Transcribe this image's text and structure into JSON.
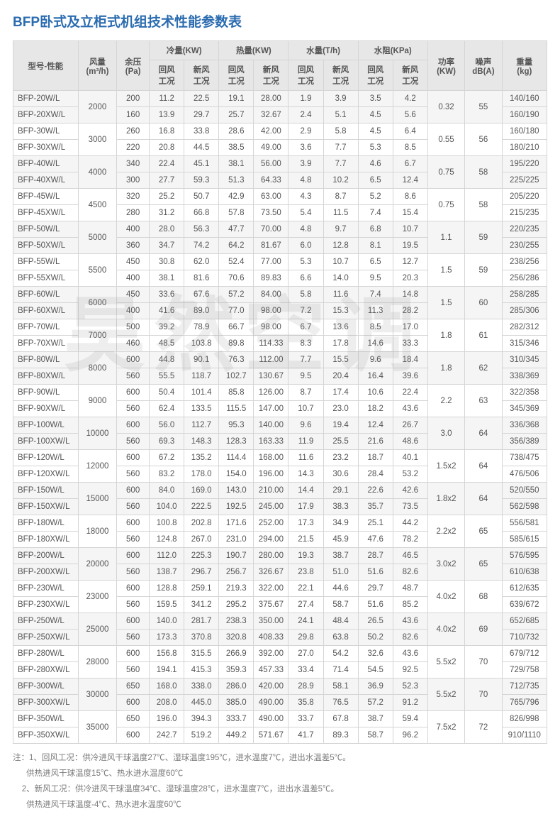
{
  "title": "BFP卧式及立柜式机组技术性能参数表",
  "watermark": "昊然空调",
  "head": {
    "model": "型号-性能",
    "airflow": "风量\n(m³/h)",
    "pressure": "余压\n(Pa)",
    "cool": "冷量(KW)",
    "heat": "热量(KW)",
    "water": "水量(T/h)",
    "resist": "水阻(KPa)",
    "sub_ret": "回风\n工况",
    "sub_new": "新风\n工况",
    "power": "功率\n(KW)",
    "noise": "噪声\ndB(A)",
    "weight": "重量\n(kg)"
  },
  "groups": [
    {
      "airflow": "2000",
      "power": "0.32",
      "noise": "55",
      "rows": [
        {
          "m": "BFP-20W/L",
          "p": "200",
          "c1": "11.2",
          "c2": "22.5",
          "h1": "19.1",
          "h2": "28.00",
          "w1": "1.9",
          "w2": "3.9",
          "r1": "3.5",
          "r2": "4.2",
          "wt": "140/160"
        },
        {
          "m": "BFP-20XW/L",
          "p": "160",
          "c1": "13.9",
          "c2": "29.7",
          "h1": "25.7",
          "h2": "32.67",
          "w1": "2.4",
          "w2": "5.1",
          "r1": "4.5",
          "r2": "5.6",
          "wt": "160/190"
        }
      ]
    },
    {
      "airflow": "3000",
      "power": "0.55",
      "noise": "56",
      "rows": [
        {
          "m": "BFP-30W/L",
          "p": "260",
          "c1": "16.8",
          "c2": "33.8",
          "h1": "28.6",
          "h2": "42.00",
          "w1": "2.9",
          "w2": "5.8",
          "r1": "4.5",
          "r2": "6.4",
          "wt": "160/180"
        },
        {
          "m": "BFP-30XW/L",
          "p": "220",
          "c1": "20.8",
          "c2": "44.5",
          "h1": "38.5",
          "h2": "49.00",
          "w1": "3.6",
          "w2": "7.7",
          "r1": "5.3",
          "r2": "8.5",
          "wt": "180/210"
        }
      ]
    },
    {
      "airflow": "4000",
      "power": "0.75",
      "noise": "58",
      "rows": [
        {
          "m": "BFP-40W/L",
          "p": "340",
          "c1": "22.4",
          "c2": "45.1",
          "h1": "38.1",
          "h2": "56.00",
          "w1": "3.9",
          "w2": "7.7",
          "r1": "4.6",
          "r2": "6.7",
          "wt": "195/220"
        },
        {
          "m": "BFP-40XW/L",
          "p": "300",
          "c1": "27.7",
          "c2": "59.3",
          "h1": "51.3",
          "h2": "64.33",
          "w1": "4.8",
          "w2": "10.2",
          "r1": "6.5",
          "r2": "12.4",
          "wt": "225/225"
        }
      ]
    },
    {
      "airflow": "4500",
      "power": "0.75",
      "noise": "58",
      "rows": [
        {
          "m": "BFP-45W/L",
          "p": "320",
          "c1": "25.2",
          "c2": "50.7",
          "h1": "42.9",
          "h2": "63.00",
          "w1": "4.3",
          "w2": "8.7",
          "r1": "5.2",
          "r2": "8.6",
          "wt": "205/220"
        },
        {
          "m": "BFP-45XW/L",
          "p": "280",
          "c1": "31.2",
          "c2": "66.8",
          "h1": "57.8",
          "h2": "73.50",
          "w1": "5.4",
          "w2": "11.5",
          "r1": "7.4",
          "r2": "15.4",
          "wt": "215/235"
        }
      ]
    },
    {
      "airflow": "5000",
      "power": "1.1",
      "noise": "59",
      "rows": [
        {
          "m": "BFP-50W/L",
          "p": "400",
          "c1": "28.0",
          "c2": "56.3",
          "h1": "47.7",
          "h2": "70.00",
          "w1": "4.8",
          "w2": "9.7",
          "r1": "6.8",
          "r2": "10.7",
          "wt": "220/235"
        },
        {
          "m": "BFP-50XW/L",
          "p": "360",
          "c1": "34.7",
          "c2": "74.2",
          "h1": "64.2",
          "h2": "81.67",
          "w1": "6.0",
          "w2": "12.8",
          "r1": "8.1",
          "r2": "19.5",
          "wt": "230/255"
        }
      ]
    },
    {
      "airflow": "5500",
      "power": "1.5",
      "noise": "59",
      "rows": [
        {
          "m": "BFP-55W/L",
          "p": "450",
          "c1": "30.8",
          "c2": "62.0",
          "h1": "52.4",
          "h2": "77.00",
          "w1": "5.3",
          "w2": "10.7",
          "r1": "6.5",
          "r2": "12.7",
          "wt": "238/256"
        },
        {
          "m": "BFP-55XW/L",
          "p": "400",
          "c1": "38.1",
          "c2": "81.6",
          "h1": "70.6",
          "h2": "89.83",
          "w1": "6.6",
          "w2": "14.0",
          "r1": "9.5",
          "r2": "20.3",
          "wt": "256/286"
        }
      ]
    },
    {
      "airflow": "6000",
      "power": "1.5",
      "noise": "60",
      "rows": [
        {
          "m": "BFP-60W/L",
          "p": "450",
          "c1": "33.6",
          "c2": "67.6",
          "h1": "57.2",
          "h2": "84.00",
          "w1": "5.8",
          "w2": "11.6",
          "r1": "7.4",
          "r2": "14.8",
          "wt": "258/285"
        },
        {
          "m": "BFP-60XW/L",
          "p": "400",
          "c1": "41.6",
          "c2": "89.0",
          "h1": "77.0",
          "h2": "98.00",
          "w1": "7.2",
          "w2": "15.3",
          "r1": "11.3",
          "r2": "28.2",
          "wt": "285/306"
        }
      ]
    },
    {
      "airflow": "7000",
      "power": "1.8",
      "noise": "61",
      "rows": [
        {
          "m": "BFP-70W/L",
          "p": "500",
          "c1": "39.2",
          "c2": "78.9",
          "h1": "66.7",
          "h2": "98.00",
          "w1": "6.7",
          "w2": "13.6",
          "r1": "8.5",
          "r2": "17.0",
          "wt": "282/312"
        },
        {
          "m": "BFP-70XW/L",
          "p": "460",
          "c1": "48.5",
          "c2": "103.8",
          "h1": "89.8",
          "h2": "114.33",
          "w1": "8.3",
          "w2": "17.8",
          "r1": "14.6",
          "r2": "33.3",
          "wt": "315/346"
        }
      ]
    },
    {
      "airflow": "8000",
      "power": "1.8",
      "noise": "62",
      "rows": [
        {
          "m": "BFP-80W/L",
          "p": "600",
          "c1": "44.8",
          "c2": "90.1",
          "h1": "76.3",
          "h2": "112.00",
          "w1": "7.7",
          "w2": "15.5",
          "r1": "9.6",
          "r2": "18.4",
          "wt": "310/345"
        },
        {
          "m": "BFP-80XW/L",
          "p": "560",
          "c1": "55.5",
          "c2": "118.7",
          "h1": "102.7",
          "h2": "130.67",
          "w1": "9.5",
          "w2": "20.4",
          "r1": "16.4",
          "r2": "39.6",
          "wt": "338/369"
        }
      ]
    },
    {
      "airflow": "9000",
      "power": "2.2",
      "noise": "63",
      "rows": [
        {
          "m": "BFP-90W/L",
          "p": "600",
          "c1": "50.4",
          "c2": "101.4",
          "h1": "85.8",
          "h2": "126.00",
          "w1": "8.7",
          "w2": "17.4",
          "r1": "10.6",
          "r2": "22.4",
          "wt": "322/358"
        },
        {
          "m": "BFP-90XW/L",
          "p": "560",
          "c1": "62.4",
          "c2": "133.5",
          "h1": "115.5",
          "h2": "147.00",
          "w1": "10.7",
          "w2": "23.0",
          "r1": "18.2",
          "r2": "43.6",
          "wt": "345/369"
        }
      ]
    },
    {
      "airflow": "10000",
      "power": "3.0",
      "noise": "64",
      "rows": [
        {
          "m": "BFP-100W/L",
          "p": "600",
          "c1": "56.0",
          "c2": "112.7",
          "h1": "95.3",
          "h2": "140.00",
          "w1": "9.6",
          "w2": "19.4",
          "r1": "12.4",
          "r2": "26.7",
          "wt": "336/368"
        },
        {
          "m": "BFP-100XW/L",
          "p": "560",
          "c1": "69.3",
          "c2": "148.3",
          "h1": "128.3",
          "h2": "163.33",
          "w1": "11.9",
          "w2": "25.5",
          "r1": "21.6",
          "r2": "48.6",
          "wt": "356/389"
        }
      ]
    },
    {
      "airflow": "12000",
      "power": "1.5x2",
      "noise": "64",
      "rows": [
        {
          "m": "BFP-120W/L",
          "p": "600",
          "c1": "67.2",
          "c2": "135.2",
          "h1": "114.4",
          "h2": "168.00",
          "w1": "11.6",
          "w2": "23.2",
          "r1": "18.7",
          "r2": "40.1",
          "wt": "738/475"
        },
        {
          "m": "BFP-120XW/L",
          "p": "560",
          "c1": "83.2",
          "c2": "178.0",
          "h1": "154.0",
          "h2": "196.00",
          "w1": "14.3",
          "w2": "30.6",
          "r1": "28.4",
          "r2": "53.2",
          "wt": "476/506"
        }
      ]
    },
    {
      "airflow": "15000",
      "power": "1.8x2",
      "noise": "64",
      "rows": [
        {
          "m": "BFP-150W/L",
          "p": "600",
          "c1": "84.0",
          "c2": "169.0",
          "h1": "143.0",
          "h2": "210.00",
          "w1": "14.4",
          "w2": "29.1",
          "r1": "22.6",
          "r2": "42.6",
          "wt": "520/550"
        },
        {
          "m": "BFP-150XW/L",
          "p": "560",
          "c1": "104.0",
          "c2": "222.5",
          "h1": "192.5",
          "h2": "245.00",
          "w1": "17.9",
          "w2": "38.3",
          "r1": "35.7",
          "r2": "73.5",
          "wt": "562/598"
        }
      ]
    },
    {
      "airflow": "18000",
      "power": "2.2x2",
      "noise": "65",
      "rows": [
        {
          "m": "BFP-180W/L",
          "p": "600",
          "c1": "100.8",
          "c2": "202.8",
          "h1": "171.6",
          "h2": "252.00",
          "w1": "17.3",
          "w2": "34.9",
          "r1": "25.1",
          "r2": "44.2",
          "wt": "556/581"
        },
        {
          "m": "BFP-180XW/L",
          "p": "560",
          "c1": "124.8",
          "c2": "267.0",
          "h1": "231.0",
          "h2": "294.00",
          "w1": "21.5",
          "w2": "45.9",
          "r1": "47.6",
          "r2": "78.2",
          "wt": "585/615"
        }
      ]
    },
    {
      "airflow": "20000",
      "power": "3.0x2",
      "noise": "65",
      "rows": [
        {
          "m": "BFP-200W/L",
          "p": "600",
          "c1": "112.0",
          "c2": "225.3",
          "h1": "190.7",
          "h2": "280.00",
          "w1": "19.3",
          "w2": "38.7",
          "r1": "28.7",
          "r2": "46.5",
          "wt": "576/595"
        },
        {
          "m": "BFP-200XW/L",
          "p": "560",
          "c1": "138.7",
          "c2": "296.7",
          "h1": "256.7",
          "h2": "326.67",
          "w1": "23.8",
          "w2": "51.0",
          "r1": "51.6",
          "r2": "82.6",
          "wt": "610/638"
        }
      ]
    },
    {
      "airflow": "23000",
      "power": "4.0x2",
      "noise": "68",
      "rows": [
        {
          "m": "BFP-230W/L",
          "p": "600",
          "c1": "128.8",
          "c2": "259.1",
          "h1": "219.3",
          "h2": "322.00",
          "w1": "22.1",
          "w2": "44.6",
          "r1": "29.7",
          "r2": "48.7",
          "wt": "612/635"
        },
        {
          "m": "BFP-230XW/L",
          "p": "560",
          "c1": "159.5",
          "c2": "341.2",
          "h1": "295.2",
          "h2": "375.67",
          "w1": "27.4",
          "w2": "58.7",
          "r1": "51.6",
          "r2": "85.2",
          "wt": "639/672"
        }
      ]
    },
    {
      "airflow": "25000",
      "power": "4.0x2",
      "noise": "69",
      "rows": [
        {
          "m": "BFP-250W/L",
          "p": "600",
          "c1": "140.0",
          "c2": "281.7",
          "h1": "238.3",
          "h2": "350.00",
          "w1": "24.1",
          "w2": "48.4",
          "r1": "26.5",
          "r2": "43.6",
          "wt": "652/685"
        },
        {
          "m": "BFP-250XW/L",
          "p": "560",
          "c1": "173.3",
          "c2": "370.8",
          "h1": "320.8",
          "h2": "408.33",
          "w1": "29.8",
          "w2": "63.8",
          "r1": "50.2",
          "r2": "82.6",
          "wt": "710/732"
        }
      ]
    },
    {
      "airflow": "28000",
      "power": "5.5x2",
      "noise": "70",
      "rows": [
        {
          "m": "BFP-280W/L",
          "p": "600",
          "c1": "156.8",
          "c2": "315.5",
          "h1": "266.9",
          "h2": "392.00",
          "w1": "27.0",
          "w2": "54.2",
          "r1": "32.6",
          "r2": "43.6",
          "wt": "679/712"
        },
        {
          "m": "BFP-280XW/L",
          "p": "560",
          "c1": "194.1",
          "c2": "415.3",
          "h1": "359.3",
          "h2": "457.33",
          "w1": "33.4",
          "w2": "71.4",
          "r1": "54.5",
          "r2": "92.5",
          "wt": "729/758"
        }
      ]
    },
    {
      "airflow": "30000",
      "power": "5.5x2",
      "noise": "70",
      "rows": [
        {
          "m": "BFP-300W/L",
          "p": "650",
          "c1": "168.0",
          "c2": "338.0",
          "h1": "286.0",
          "h2": "420.00",
          "w1": "28.9",
          "w2": "58.1",
          "r1": "36.9",
          "r2": "52.3",
          "wt": "712/735"
        },
        {
          "m": "BFP-300XW/L",
          "p": "600",
          "c1": "208.0",
          "c2": "445.0",
          "h1": "385.0",
          "h2": "490.00",
          "w1": "35.8",
          "w2": "76.5",
          "r1": "57.2",
          "r2": "91.2",
          "wt": "765/796"
        }
      ]
    },
    {
      "airflow": "35000",
      "power": "7.5x2",
      "noise": "72",
      "rows": [
        {
          "m": "BFP-350W/L",
          "p": "650",
          "c1": "196.0",
          "c2": "394.3",
          "h1": "333.7",
          "h2": "490.00",
          "w1": "33.7",
          "w2": "67.8",
          "r1": "38.7",
          "r2": "59.4",
          "wt": "826/998"
        },
        {
          "m": "BFP-350XW/L",
          "p": "600",
          "c1": "242.7",
          "c2": "519.2",
          "h1": "449.2",
          "h2": "571.67",
          "w1": "41.7",
          "w2": "89.3",
          "r1": "58.7",
          "r2": "96.2",
          "wt": "910/1110"
        }
      ]
    }
  ],
  "notes": [
    "注：1、回风工况：供冷进风干球温度27℃、湿球温度195℃，进水温度7℃，进出水温差5℃。",
    "      供热进风干球温度15℃、热水进水温度60℃",
    "    2、新风工况：供冷进风干球温度34℃、湿球温度28℃，进水温度7℃，进出水温差5℃。",
    "      供热进风干球温度-4℃、热水进水温度60℃"
  ]
}
